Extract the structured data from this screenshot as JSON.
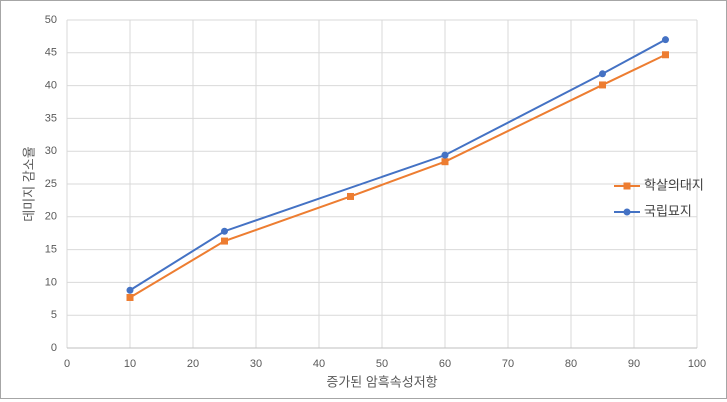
{
  "chart_data": {
    "type": "line",
    "x_label": "증가된 암흑속성저항",
    "y_label": "데미지 감소율",
    "xlim": [
      0,
      100
    ],
    "xticks": [
      0,
      10,
      20,
      30,
      40,
      50,
      60,
      70,
      80,
      90,
      100
    ],
    "ylim": [
      0,
      50
    ],
    "yticks": [
      0,
      5,
      10,
      15,
      20,
      25,
      30,
      35,
      40,
      45,
      50
    ],
    "grid": true,
    "legend": "right",
    "series": [
      {
        "name": "학살의대지",
        "color": "#ed7d31",
        "marker": "square",
        "x": [
          10,
          25,
          45,
          60,
          85,
          95
        ],
        "values": [
          7.7,
          16.3,
          23.1,
          28.4,
          40.1,
          44.7
        ]
      },
      {
        "name": "국립묘지",
        "color": "#4472c4",
        "marker": "circle",
        "x": [
          10,
          25,
          60,
          85,
          95
        ],
        "values": [
          8.8,
          17.8,
          29.4,
          41.8,
          47.0
        ]
      }
    ]
  }
}
